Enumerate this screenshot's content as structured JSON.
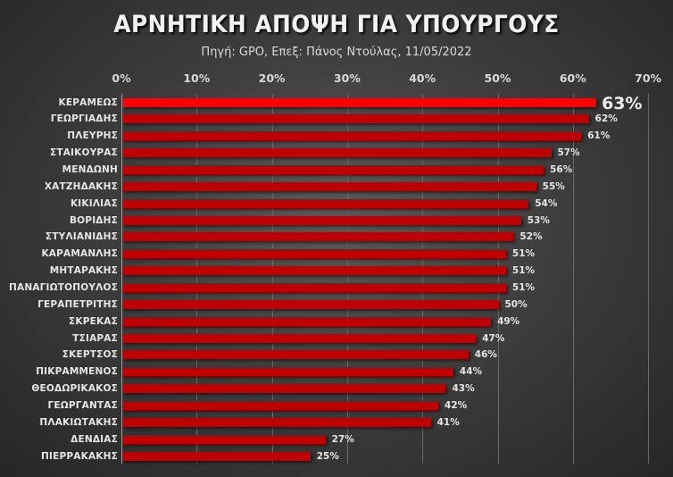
{
  "header": {
    "title": "ΑΡΝΗΤΙΚΗ ΑΠΟΨΗ ΓΙΑ ΥΠΟΥΡΓΟΥΣ",
    "subtitle": "Πηγή: GPO, Επεξ: Πάνος Ντούλας, 11/05/2022"
  },
  "axis": {
    "ticks": [
      "0%",
      "10%",
      "20%",
      "30%",
      "40%",
      "50%",
      "60%",
      "70%"
    ]
  },
  "colors": {
    "highlight_bar": "#ff0000",
    "bar": "#c00000",
    "text": "#e6e6e6"
  },
  "chart_data": {
    "type": "bar",
    "orientation": "horizontal",
    "title": "ΑΡΝΗΤΙΚΗ ΑΠΟΨΗ ΓΙΑ ΥΠΟΥΡΓΟΥΣ",
    "subtitle": "Πηγή: GPO, Επεξ: Πάνος Ντούλας, 11/05/2022",
    "xlabel": "",
    "ylabel": "",
    "xlim": [
      0,
      70
    ],
    "x_ticks": [
      "0%",
      "10%",
      "20%",
      "30%",
      "40%",
      "50%",
      "60%",
      "70%"
    ],
    "x_axis_position": "top",
    "grid": true,
    "legend": null,
    "categories": [
      "ΚΕΡΑΜΕΩΣ",
      "ΓΕΩΡΓΙΑΔΗΣ",
      "ΠΛΕΥΡΗΣ",
      "ΣΤΑΙΚΟΥΡΑΣ",
      "ΜΕΝΔΩΝΗ",
      "ΧΑΤΖΗΔΑΚΗΣ",
      "ΚΙΚΙΛΙΑΣ",
      "ΒΟΡΙΔΗΣ",
      "ΣΤΥΛΙΑΝΙΔΗΣ",
      "ΚΑΡΑΜΑΝΛΗΣ",
      "ΜΗΤΑΡΑΚΗΣ",
      "ΠΑΝΑΓΙΩΤΟΠΟΥΛΟΣ",
      "ΓΕΡΑΠΕΤΡΙΤΗΣ",
      "ΣΚΡΕΚΑΣ",
      "ΤΣΙΑΡΑΣ",
      "ΣΚΕΡΤΣΟΣ",
      "ΠΙΚΡΑΜΜΕΝΟΣ",
      "ΘΕΟΔΩΡΙΚΑΚΟΣ",
      "ΓΕΩΡΓΑΝΤΑΣ",
      "ΠΛΑΚΙΩΤΑΚΗΣ",
      "ΔΕΝΔΙΑΣ",
      "ΠΙΕΡΡΑΚΑΚΗΣ"
    ],
    "values": [
      63,
      62,
      61,
      57,
      56,
      55,
      54,
      53,
      52,
      51,
      51,
      51,
      50,
      49,
      47,
      46,
      44,
      43,
      42,
      41,
      27,
      25
    ],
    "value_labels": [
      "63%",
      "62%",
      "61%",
      "57%",
      "56%",
      "55%",
      "54%",
      "53%",
      "52%",
      "51%",
      "51%",
      "51%",
      "50%",
      "49%",
      "47%",
      "46%",
      "44%",
      "43%",
      "42%",
      "41%",
      "27%",
      "25%"
    ],
    "highlighted_index": 0
  }
}
